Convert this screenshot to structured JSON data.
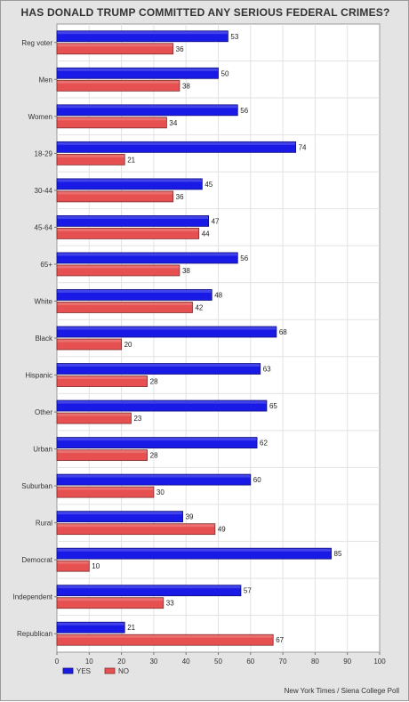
{
  "chart_data": {
    "type": "bar",
    "orientation": "horizontal",
    "title": "HAS DONALD TRUMP COMMITTED ANY SERIOUS FEDERAL CRIMES?",
    "xlabel": "",
    "ylabel": "",
    "xlim": [
      0,
      100
    ],
    "x_ticks": [
      0,
      10,
      20,
      30,
      40,
      50,
      60,
      70,
      80,
      90,
      100
    ],
    "grid": true,
    "legend_position": "bottom-left",
    "categories": [
      "Reg voter",
      "Men",
      "Women",
      "18-29",
      "30-44",
      "45-64",
      "65+",
      "White",
      "Black",
      "Hispanic",
      "Other",
      "Urban",
      "Suburban",
      "Rural",
      "Democrat",
      "Independent",
      "Republican"
    ],
    "series": [
      {
        "name": "YES",
        "color": "#1a1ae6",
        "values": [
          53,
          50,
          56,
          74,
          45,
          47,
          56,
          48,
          68,
          63,
          65,
          62,
          60,
          39,
          85,
          57,
          21
        ]
      },
      {
        "name": "NO",
        "color": "#e65050",
        "values": [
          36,
          38,
          34,
          21,
          36,
          44,
          38,
          42,
          20,
          28,
          23,
          28,
          30,
          49,
          10,
          33,
          67
        ]
      }
    ],
    "source": "New York Times / Siena College Poll"
  }
}
